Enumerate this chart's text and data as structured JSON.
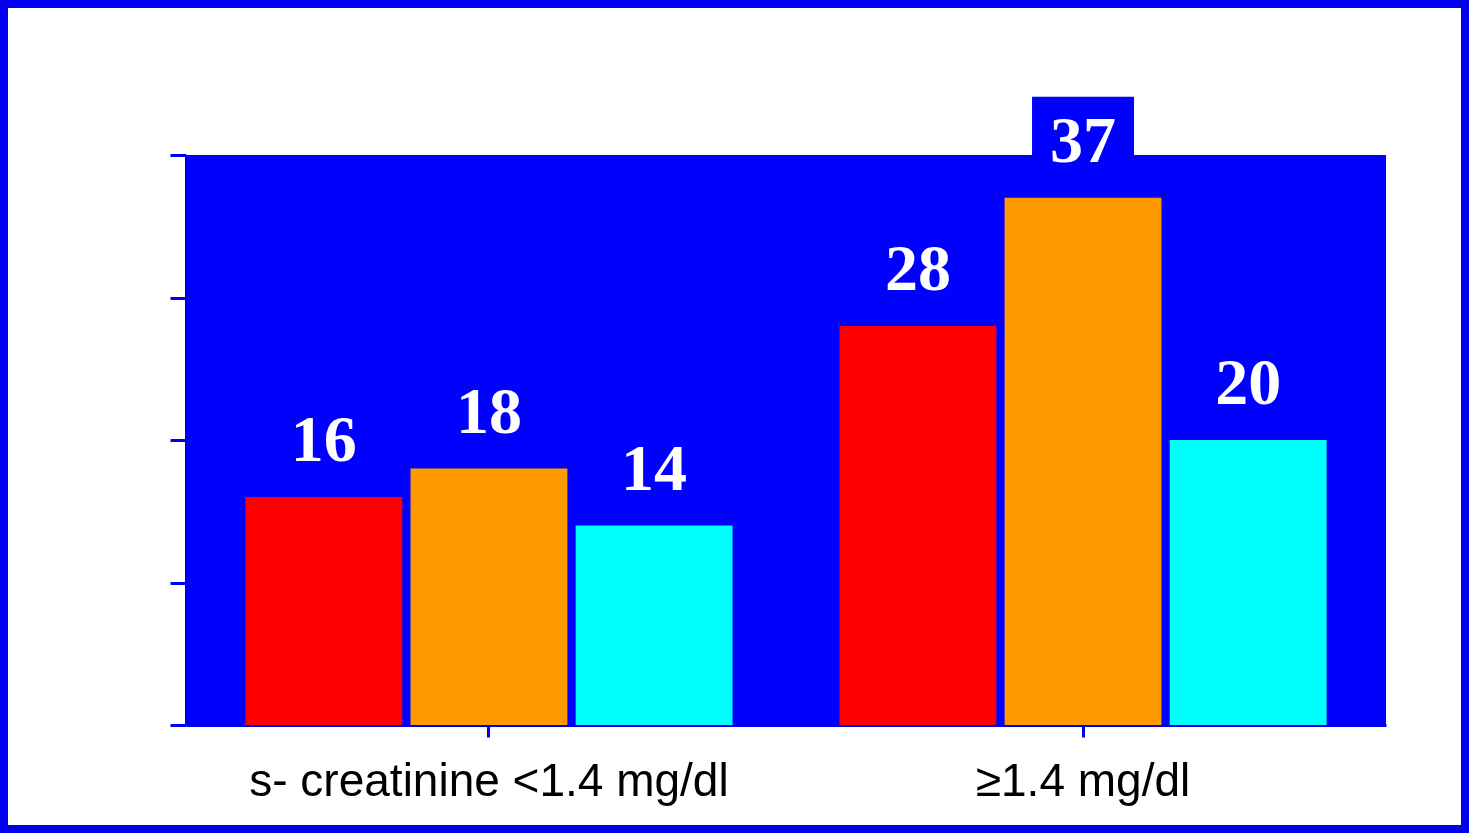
{
  "chart_data": {
    "type": "bar",
    "categories": [
      "s- creatinine  <1.4 mg/dl",
      "≥1.4 mg/dl"
    ],
    "series": [
      {
        "color": "#ff0000",
        "values": [
          16,
          28
        ]
      },
      {
        "color": "#ff9900",
        "values": [
          18,
          37
        ]
      },
      {
        "color": "#00ffff",
        "values": [
          14,
          20
        ]
      }
    ],
    "ylim": [
      0,
      40
    ],
    "yticks": [
      {
        "value": 0,
        "label": null
      },
      {
        "value": 10,
        "label": null
      },
      {
        "value": 20,
        "label": null
      },
      {
        "value": 30,
        "label": null
      },
      {
        "value": 40,
        "label": null
      }
    ],
    "tick_labels": "x",
    "data_labels": true,
    "grid": false,
    "legend": false
  }
}
